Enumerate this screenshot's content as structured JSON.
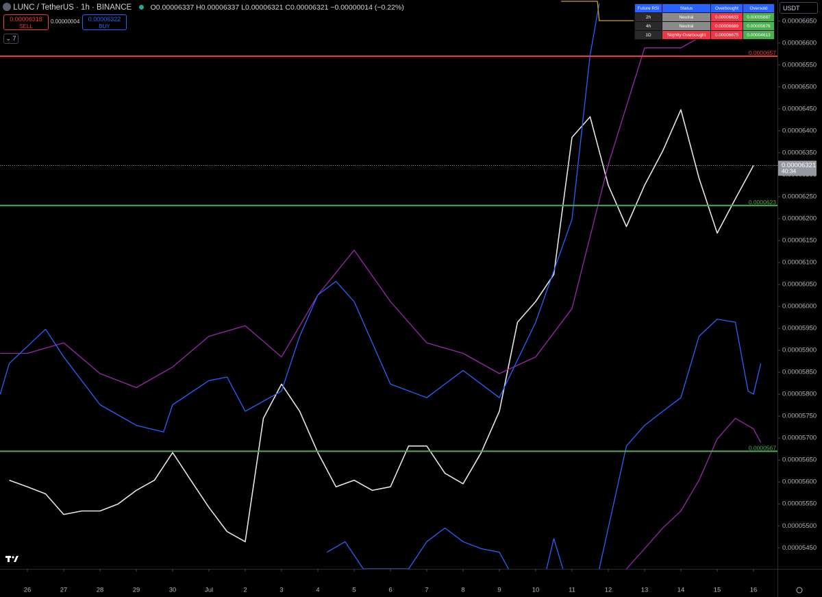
{
  "header": {
    "symbol": "LUNC / TetherUS · 1h · BINANCE",
    "ohlc": "O0.00006337 H0.00006337 L0.00006321 C0.00006321 −0.00000014 (−0.22%)",
    "sell_price": "0.00006318",
    "sell": "SELL",
    "spread": "0.00000004",
    "buy_price": "0.00006322",
    "buy": "BUY",
    "indicators": "7",
    "currency": "USDT"
  },
  "rsi_table": {
    "columns": [
      "Future RSI",
      "Status",
      "Overbought",
      "Oversold"
    ],
    "rows": [
      [
        "2h",
        "Neutral",
        "0.00006633",
        "0.00005667"
      ],
      [
        "4h",
        "Neutral",
        "0.00006689",
        "0.00005676"
      ],
      [
        "1D",
        "Slightly Overbought",
        "0.00006675",
        "0.00004613"
      ]
    ]
  },
  "chart_data": {
    "type": "line",
    "xlim": [
      -0.755,
      20.66
    ],
    "ylim": [
      5.402e-05,
      6.698e-05
    ],
    "xticks": [
      {
        "value": 0,
        "label": "26"
      },
      {
        "value": 1,
        "label": "27"
      },
      {
        "value": 2,
        "label": "28"
      },
      {
        "value": 3,
        "label": "29"
      },
      {
        "value": 4,
        "label": "30"
      },
      {
        "value": 5,
        "label": "Jul"
      },
      {
        "value": 6,
        "label": "2"
      },
      {
        "value": 7,
        "label": "3"
      },
      {
        "value": 8,
        "label": "4"
      },
      {
        "value": 9,
        "label": "5"
      },
      {
        "value": 10,
        "label": "6"
      },
      {
        "value": 11,
        "label": "7"
      },
      {
        "value": 12,
        "label": "8"
      },
      {
        "value": 13,
        "label": "9"
      },
      {
        "value": 14,
        "label": "10"
      },
      {
        "value": 15,
        "label": "11"
      },
      {
        "value": 16,
        "label": "12"
      },
      {
        "value": 17,
        "label": "13"
      },
      {
        "value": 18,
        "label": "14"
      },
      {
        "value": 19,
        "label": "15"
      },
      {
        "value": 20,
        "label": "16"
      }
    ],
    "yticks": [
      {
        "value": 5.45e-05,
        "label": "0.00005450"
      },
      {
        "value": 5.5e-05,
        "label": "0.00005500"
      },
      {
        "value": 5.55e-05,
        "label": "0.00005550"
      },
      {
        "value": 5.6e-05,
        "label": "0.00005600"
      },
      {
        "value": 5.65e-05,
        "label": "0.00005650"
      },
      {
        "value": 5.7e-05,
        "label": "0.00005700"
      },
      {
        "value": 5.75e-05,
        "label": "0.00005750"
      },
      {
        "value": 5.8e-05,
        "label": "0.00005800"
      },
      {
        "value": 5.85e-05,
        "label": "0.00005850"
      },
      {
        "value": 5.9e-05,
        "label": "0.00005900"
      },
      {
        "value": 5.95e-05,
        "label": "0.00005950"
      },
      {
        "value": 6e-05,
        "label": "0.00006000"
      },
      {
        "value": 6.05e-05,
        "label": "0.00006050"
      },
      {
        "value": 6.1e-05,
        "label": "0.00006100"
      },
      {
        "value": 6.15e-05,
        "label": "0.00006150"
      },
      {
        "value": 6.2e-05,
        "label": "0.00006200"
      },
      {
        "value": 6.25e-05,
        "label": "0.00006250"
      },
      {
        "value": 6.3e-05,
        "label": "0.00006300"
      },
      {
        "value": 6.35e-05,
        "label": "0.00006350"
      },
      {
        "value": 6.4e-05,
        "label": "0.00006400"
      },
      {
        "value": 6.45e-05,
        "label": "0.00006450"
      },
      {
        "value": 6.5e-05,
        "label": "0.00006500"
      },
      {
        "value": 6.55e-05,
        "label": "0.00006550"
      },
      {
        "value": 6.6e-05,
        "label": "0.00006600"
      },
      {
        "value": 6.65e-05,
        "label": "0.00006650"
      }
    ],
    "series": [
      {
        "color": "#e6e6e6",
        "x": [
          -0.5,
          0,
          0.5,
          1,
          1.5,
          2,
          2.5,
          3,
          3.5,
          4,
          4.5,
          5,
          5.5,
          6,
          6.5,
          7,
          7.5,
          8,
          8.5,
          9,
          9.5,
          10,
          10.5,
          11,
          11.5,
          12,
          12.5,
          13,
          13.5,
          14,
          14.5,
          15,
          15.5,
          16,
          16.5,
          17,
          17.5,
          18,
          18.5,
          19,
          19.5,
          20
        ],
        "values": [
          5.604e-05,
          5.589e-05,
          5.573e-05,
          5.526e-05,
          5.534e-05,
          5.534e-05,
          5.55e-05,
          5.581e-05,
          5.604e-05,
          5.667e-05,
          5.604e-05,
          5.542e-05,
          5.487e-05,
          5.464e-05,
          5.745e-05,
          5.823e-05,
          5.761e-05,
          5.667e-05,
          5.589e-05,
          5.604e-05,
          5.581e-05,
          5.589e-05,
          5.682e-05,
          5.682e-05,
          5.62e-05,
          5.596e-05,
          5.667e-05,
          5.761e-05,
          5.964e-05,
          6.011e-05,
          6.073e-05,
          6.385e-05,
          6.432e-05,
          6.276e-05,
          6.182e-05,
          6.276e-05,
          6.354e-05,
          6.448e-05,
          6.292e-05,
          6.167e-05,
          6.245e-05,
          6.321e-05
        ]
      },
      {
        "color": "#9c27b0",
        "x": [
          -0.75,
          0,
          1,
          2,
          3,
          4,
          5,
          6,
          7,
          8,
          9,
          10,
          11,
          12,
          13,
          14,
          15,
          16,
          17,
          18,
          19
        ],
        "values": [
          5.893e-05,
          5.893e-05,
          5.917e-05,
          5.847e-05,
          5.815e-05,
          5.862e-05,
          5.932e-05,
          5.956e-05,
          5.885e-05,
          6.026e-05,
          6.128e-05,
          6.011e-05,
          5.917e-05,
          5.893e-05,
          5.847e-05,
          5.885e-05,
          5.995e-05,
          6.323e-05,
          6.589e-05,
          6.589e-05,
          6.635e-05
        ]
      },
      {
        "color": "#2962ff",
        "x": [
          -0.75,
          -0.5,
          0.5,
          1,
          2,
          3,
          3.75,
          4,
          5,
          5.5,
          6,
          7,
          7.5,
          8,
          8.5,
          9,
          10,
          11,
          12,
          13,
          14,
          15,
          15.5,
          15.75
        ],
        "values": [
          5.8e-05,
          5.87e-05,
          5.948e-05,
          5.885e-05,
          5.776e-05,
          5.729e-05,
          5.714e-05,
          5.776e-05,
          5.831e-05,
          5.839e-05,
          5.761e-05,
          5.807e-05,
          5.932e-05,
          6.026e-05,
          6.057e-05,
          6.011e-05,
          5.823e-05,
          5.792e-05,
          5.854e-05,
          5.792e-05,
          5.964e-05,
          6.198e-05,
          6.573e-05,
          6.69e-05
        ]
      },
      {
        "color": "#2962ff",
        "x": [
          8.25,
          8.75,
          9.25,
          10.5,
          11,
          11.5,
          12,
          12.5,
          13,
          13.25,
          13.5,
          14.3,
          14.5,
          14.75,
          15,
          15.75,
          16.5,
          17,
          17.5,
          18,
          18.5,
          19,
          19.5,
          19.85,
          20,
          20.2
        ],
        "values": [
          5.44e-05,
          5.464e-05,
          5.402e-05,
          5.402e-05,
          5.464e-05,
          5.495e-05,
          5.464e-05,
          5.448e-05,
          5.44e-05,
          5.402e-05,
          null,
          5.402e-05,
          5.471e-05,
          5.402e-05,
          null,
          5.402e-05,
          5.682e-05,
          5.729e-05,
          5.761e-05,
          5.792e-05,
          5.932e-05,
          5.971e-05,
          5.964e-05,
          5.807e-05,
          5.8e-05,
          5.87e-05
        ]
      },
      {
        "color": "#9c27b0",
        "x": [
          16.5,
          17,
          17.5,
          18,
          18.5,
          19,
          19.5,
          20,
          20.2
        ],
        "values": [
          5.402e-05,
          5.448e-05,
          5.495e-05,
          5.534e-05,
          5.604e-05,
          5.698e-05,
          5.745e-05,
          5.721e-05,
          5.69e-05
        ]
      },
      {
        "color": "#c9a227",
        "x": [
          14.7,
          15.7,
          15.75,
          16.7
        ],
        "values": [
          6.695e-05,
          6.695e-05,
          6.651e-05,
          6.651e-05
        ]
      }
    ],
    "levels": [
      {
        "value": 6.57e-05,
        "label": "0.0000657",
        "color": "#f23645"
      },
      {
        "value": 6.23e-05,
        "label": "0.0000623",
        "color": "#4caf50"
      },
      {
        "value": 5.67e-05,
        "label": "0.0000567",
        "color": "#4caf50"
      }
    ],
    "last_price": {
      "value": 6.321e-05,
      "label": "0.00006321",
      "countdown": "40:34"
    }
  }
}
